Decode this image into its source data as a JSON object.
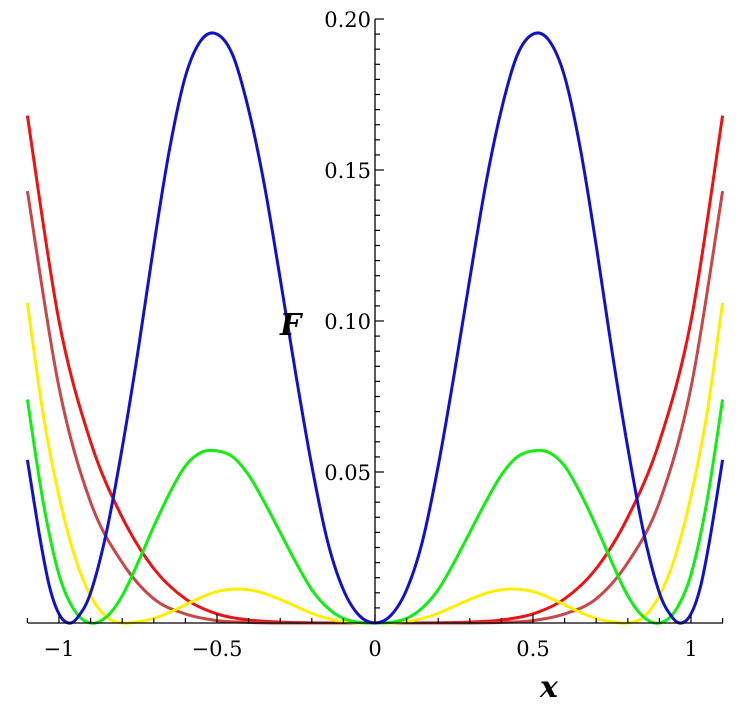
{
  "chart_data": {
    "type": "line",
    "title": "",
    "xlabel": "x",
    "ylabel": "F",
    "xlim": [
      -1.1,
      1.1
    ],
    "ylim": [
      0,
      0.2
    ],
    "x_ticks": [
      {
        "value": -1,
        "label": "−1"
      },
      {
        "value": -0.5,
        "label": "−0.5"
      },
      {
        "value": 0,
        "label": "0"
      },
      {
        "value": 0.5,
        "label": "0.5"
      },
      {
        "value": 1,
        "label": "1"
      }
    ],
    "y_ticks": [
      {
        "value": 0.05,
        "label": "0.05"
      },
      {
        "value": 0.1,
        "label": "0.10"
      },
      {
        "value": 0.15,
        "label": "0.15"
      },
      {
        "value": 0.2,
        "label": "0.20"
      }
    ],
    "grid": false,
    "series": [
      {
        "color": "#ee1111",
        "x": [
          -1.1,
          -1.0,
          -0.9,
          -0.8,
          -0.7,
          -0.6,
          -0.5,
          -0.4,
          -0.3,
          -0.2,
          -0.1,
          0,
          0.1,
          0.2,
          0.3,
          0.4,
          0.5,
          0.6,
          0.7,
          0.8,
          0.9,
          1.0,
          1.1
        ],
        "values": [
          0.168,
          0.1,
          0.06,
          0.035,
          0.018,
          0.008,
          0.003,
          0.001,
          0.0003,
          0.0001,
          0,
          0,
          0,
          0.0001,
          0.0003,
          0.001,
          0.003,
          0.008,
          0.018,
          0.035,
          0.06,
          0.1,
          0.168
        ]
      },
      {
        "color": "#c84848",
        "x": [
          -1.1,
          -1.0,
          -0.9,
          -0.8,
          -0.7,
          -0.6,
          -0.5,
          -0.4,
          -0.3,
          -0.2,
          -0.1,
          0,
          0.1,
          0.2,
          0.3,
          0.4,
          0.5,
          0.6,
          0.7,
          0.8,
          0.9,
          1.0,
          1.1
        ],
        "values": [
          0.143,
          0.078,
          0.04,
          0.02,
          0.008,
          0.003,
          0.0008,
          0.0002,
          0,
          0,
          0,
          0,
          0,
          0,
          0,
          0.0002,
          0.0008,
          0.003,
          0.008,
          0.02,
          0.04,
          0.078,
          0.143
        ]
      },
      {
        "color": "#ffee00",
        "x": [
          -1.1,
          -1.05,
          -1.0,
          -0.95,
          -0.9,
          -0.85,
          -0.8,
          -0.75,
          -0.7,
          -0.65,
          -0.6,
          -0.55,
          -0.5,
          -0.45,
          -0.4,
          -0.35,
          -0.3,
          -0.25,
          -0.2,
          -0.15,
          -0.1,
          -0.05,
          0,
          0.05,
          0.1,
          0.15,
          0.2,
          0.25,
          0.3,
          0.35,
          0.4,
          0.45,
          0.5,
          0.55,
          0.6,
          0.65,
          0.7,
          0.75,
          0.8,
          0.85,
          0.9,
          0.95,
          1.0,
          1.05,
          1.1
        ],
        "values": [
          0.106,
          0.069,
          0.042,
          0.022,
          0.009,
          0.002,
          0,
          0.0004,
          0.0015,
          0.0035,
          0.006,
          0.0085,
          0.0104,
          0.0112,
          0.011,
          0.0098,
          0.0078,
          0.0055,
          0.0032,
          0.0015,
          0.0004,
          0,
          0,
          0,
          0.0004,
          0.0015,
          0.0032,
          0.0055,
          0.0078,
          0.0098,
          0.011,
          0.0112,
          0.0104,
          0.0085,
          0.006,
          0.0035,
          0.0015,
          0.0004,
          0,
          0.002,
          0.009,
          0.022,
          0.042,
          0.069,
          0.106
        ]
      },
      {
        "color": "#11ee11",
        "x": [
          -1.1,
          -1.05,
          -1.0,
          -0.95,
          -0.9,
          -0.85,
          -0.8,
          -0.75,
          -0.7,
          -0.65,
          -0.6,
          -0.55,
          -0.5,
          -0.45,
          -0.4,
          -0.35,
          -0.3,
          -0.25,
          -0.2,
          -0.15,
          -0.1,
          -0.05,
          0,
          0.05,
          0.1,
          0.15,
          0.2,
          0.25,
          0.3,
          0.35,
          0.4,
          0.45,
          0.5,
          0.55,
          0.6,
          0.65,
          0.7,
          0.75,
          0.8,
          0.85,
          0.9,
          0.95,
          1.0,
          1.05,
          1.1
        ],
        "values": [
          0.074,
          0.04,
          0.016,
          0.004,
          0,
          0.002,
          0.009,
          0.02,
          0.032,
          0.043,
          0.052,
          0.0565,
          0.057,
          0.055,
          0.049,
          0.04,
          0.03,
          0.02,
          0.011,
          0.005,
          0.0015,
          0.0002,
          0,
          0.0002,
          0.0015,
          0.005,
          0.011,
          0.02,
          0.03,
          0.04,
          0.049,
          0.055,
          0.057,
          0.0565,
          0.052,
          0.043,
          0.032,
          0.02,
          0.009,
          0.002,
          0,
          0.004,
          0.016,
          0.04,
          0.074
        ]
      },
      {
        "color": "#1111cc",
        "x": [
          -1.1,
          -1.06,
          -1.03,
          -1.0,
          -0.97,
          -0.94,
          -0.9,
          -0.85,
          -0.8,
          -0.75,
          -0.7,
          -0.65,
          -0.6,
          -0.55,
          -0.5,
          -0.45,
          -0.4,
          -0.35,
          -0.3,
          -0.25,
          -0.2,
          -0.15,
          -0.1,
          -0.05,
          0,
          0.05,
          0.1,
          0.15,
          0.2,
          0.25,
          0.3,
          0.35,
          0.4,
          0.45,
          0.5,
          0.55,
          0.6,
          0.65,
          0.7,
          0.75,
          0.8,
          0.85,
          0.9,
          0.94,
          0.97,
          1.0,
          1.03,
          1.06,
          1.1
        ],
        "values": [
          0.054,
          0.028,
          0.012,
          0.003,
          0,
          0.002,
          0.01,
          0.03,
          0.058,
          0.09,
          0.125,
          0.157,
          0.181,
          0.193,
          0.195,
          0.188,
          0.17,
          0.145,
          0.114,
          0.082,
          0.052,
          0.027,
          0.011,
          0.0025,
          0,
          0.0025,
          0.011,
          0.027,
          0.052,
          0.082,
          0.114,
          0.145,
          0.17,
          0.188,
          0.195,
          0.193,
          0.181,
          0.157,
          0.125,
          0.09,
          0.058,
          0.03,
          0.01,
          0.002,
          0,
          0.003,
          0.012,
          0.028,
          0.054
        ]
      }
    ]
  }
}
